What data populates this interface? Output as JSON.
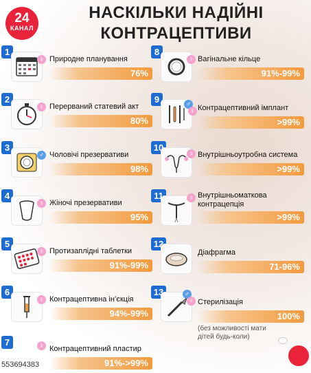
{
  "logo": {
    "number": "24",
    "text": "КАНАЛ",
    "color": "#e8233a"
  },
  "title": {
    "line1": "НАСКІЛЬКИ НАДІЙНІ",
    "line2": "КОНТРАЦЕПТИВИ"
  },
  "colors": {
    "number_badge": "#1e6bd1",
    "bar_end": "#f39a3d",
    "female": "#f4a3cc",
    "male": "#5a9ee6"
  },
  "methods": [
    {
      "num": "1",
      "label": "Природне планування",
      "value": "76%",
      "gender": "female",
      "icon": "calendar-icon"
    },
    {
      "num": "2",
      "label": "Перерваний статевий акт",
      "value": "80%",
      "gender": "female",
      "icon": "stopwatch-icon"
    },
    {
      "num": "3",
      "label": "Чоловічі презервативи",
      "value": "98%",
      "gender": "male",
      "icon": "condom-icon"
    },
    {
      "num": "4",
      "label": "Жіночі презервативи",
      "value": "95%",
      "gender": "female",
      "icon": "female-condom-icon"
    },
    {
      "num": "5",
      "label": "Протизаплідні таблетки",
      "value": "91%-99%",
      "gender": "female",
      "icon": "pill-pack-icon"
    },
    {
      "num": "6",
      "label": "Контрацептивна ін’єкція",
      "value": "94%-99%",
      "gender": "female",
      "icon": "syringe-icon"
    },
    {
      "num": "7",
      "label": "Контрацептивний пластир",
      "value": "91%->99%",
      "gender": "female",
      "icon": "patch-icon"
    },
    {
      "num": "8",
      "label": "Вагінальне кільце",
      "value": "91%-99%",
      "gender": "female",
      "icon": "ring-icon"
    },
    {
      "num": "9",
      "label": "Контрацептивний імплант",
      "value": ">99%",
      "gender": "both",
      "icon": "implant-icon"
    },
    {
      "num": "10",
      "label": "Внутрішньоутробна система",
      "value": ">99%",
      "gender": "female",
      "icon": "uterus-icon"
    },
    {
      "num": "11",
      "label": "Внутрішньоматкова контрацепція",
      "value": ">99%",
      "gender": "female",
      "icon": "iud-icon"
    },
    {
      "num": "12",
      "label": "Діафрагма",
      "value": "71-96%",
      "gender": "female",
      "icon": "diaphragm-icon"
    },
    {
      "num": "13",
      "label": "Стерилізація",
      "value": "100%",
      "gender": "both",
      "icon": "scalpel-icon",
      "note": "(без можливості мати дітей будь-коли)"
    }
  ],
  "photo_id": "553694383"
}
